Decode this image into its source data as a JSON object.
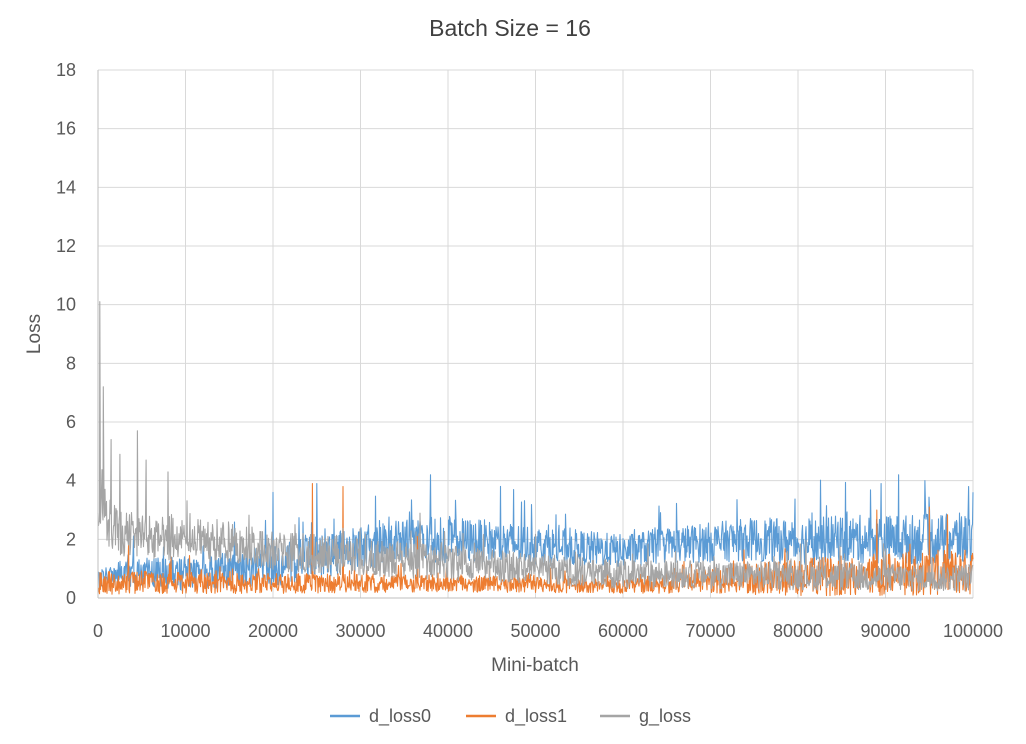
{
  "chart_data": {
    "type": "line",
    "title": "Batch Size = 16",
    "xlabel": "Mini-batch",
    "ylabel": "Loss",
    "xlim": [
      0,
      100000
    ],
    "ylim": [
      0,
      18
    ],
    "x_ticks": [
      "0",
      "10000",
      "20000",
      "30000",
      "40000",
      "50000",
      "60000",
      "70000",
      "80000",
      "90000",
      "100000"
    ],
    "y_ticks": [
      "0",
      "2",
      "4",
      "6",
      "8",
      "10",
      "12",
      "14",
      "16",
      "18"
    ],
    "grid": true,
    "legend_position": "bottom",
    "series": [
      {
        "name": "d_loss0",
        "color": "#5B9BD5",
        "points": [
          [
            0,
            0.6
          ],
          [
            2000,
            0.8
          ],
          [
            5000,
            0.9
          ],
          [
            10000,
            0.8
          ],
          [
            15000,
            1.0
          ],
          [
            20000,
            1.1
          ],
          [
            25000,
            1.4
          ],
          [
            30000,
            1.7
          ],
          [
            35000,
            1.9
          ],
          [
            38000,
            2.0
          ],
          [
            40000,
            2.0
          ],
          [
            45000,
            1.9
          ],
          [
            50000,
            1.8
          ],
          [
            55000,
            1.7
          ],
          [
            60000,
            1.6
          ],
          [
            65000,
            1.8
          ],
          [
            70000,
            1.9
          ],
          [
            75000,
            2.0
          ],
          [
            80000,
            1.9
          ],
          [
            85000,
            2.0
          ],
          [
            90000,
            2.0
          ],
          [
            95000,
            2.0
          ],
          [
            100000,
            2.0
          ]
        ],
        "noise": [
          [
            0,
            0.5
          ],
          [
            20000,
            0.9
          ],
          [
            40000,
            1.0
          ],
          [
            60000,
            0.7
          ],
          [
            80000,
            1.0
          ],
          [
            100000,
            1.1
          ]
        ],
        "spikes": [
          [
            20000,
            3.6
          ],
          [
            25000,
            3.9
          ],
          [
            38000,
            4.2
          ],
          [
            47500,
            3.7
          ],
          [
            89500,
            3.9
          ],
          [
            91500,
            4.2
          ],
          [
            94500,
            4.0
          ],
          [
            99500,
            3.8
          ]
        ]
      },
      {
        "name": "d_loss1",
        "color": "#ED7D31",
        "points": [
          [
            0,
            0.5
          ],
          [
            5000,
            0.55
          ],
          [
            10000,
            0.5
          ],
          [
            20000,
            0.5
          ],
          [
            30000,
            0.5
          ],
          [
            40000,
            0.5
          ],
          [
            50000,
            0.45
          ],
          [
            60000,
            0.4
          ],
          [
            70000,
            0.6
          ],
          [
            80000,
            0.7
          ],
          [
            90000,
            0.8
          ],
          [
            100000,
            0.9
          ]
        ],
        "noise": [
          [
            0,
            0.5
          ],
          [
            30000,
            0.4
          ],
          [
            60000,
            0.3
          ],
          [
            80000,
            0.8
          ],
          [
            100000,
            1.0
          ]
        ],
        "spikes": [
          [
            3500,
            1.9
          ],
          [
            24500,
            3.9
          ],
          [
            28000,
            3.8
          ],
          [
            36500,
            2.1
          ],
          [
            89000,
            3.0
          ],
          [
            95000,
            3.1
          ]
        ]
      },
      {
        "name": "g_loss",
        "color": "#A5A5A5",
        "points": [
          [
            0,
            3.0
          ],
          [
            500,
            3.5
          ],
          [
            1000,
            2.6
          ],
          [
            2000,
            2.3
          ],
          [
            3000,
            2.2
          ],
          [
            5000,
            2.1
          ],
          [
            10000,
            2.0
          ],
          [
            15000,
            1.9
          ],
          [
            20000,
            1.6
          ],
          [
            25000,
            1.5
          ],
          [
            30000,
            1.4
          ],
          [
            35000,
            1.3
          ],
          [
            40000,
            1.2
          ],
          [
            45000,
            1.1
          ],
          [
            50000,
            1.0
          ],
          [
            55000,
            0.9
          ],
          [
            60000,
            0.8
          ],
          [
            70000,
            0.8
          ],
          [
            80000,
            0.75
          ],
          [
            90000,
            0.7
          ],
          [
            100000,
            0.7
          ]
        ],
        "noise": [
          [
            0,
            1.2
          ],
          [
            3000,
            1.0
          ],
          [
            10000,
            0.9
          ],
          [
            30000,
            0.8
          ],
          [
            60000,
            0.6
          ],
          [
            100000,
            0.6
          ]
        ],
        "spikes": [
          [
            200,
            10.1
          ],
          [
            600,
            7.2
          ],
          [
            1500,
            5.4
          ],
          [
            2500,
            4.9
          ],
          [
            4500,
            5.7
          ],
          [
            5500,
            4.7
          ],
          [
            8000,
            4.3
          ]
        ]
      }
    ]
  }
}
